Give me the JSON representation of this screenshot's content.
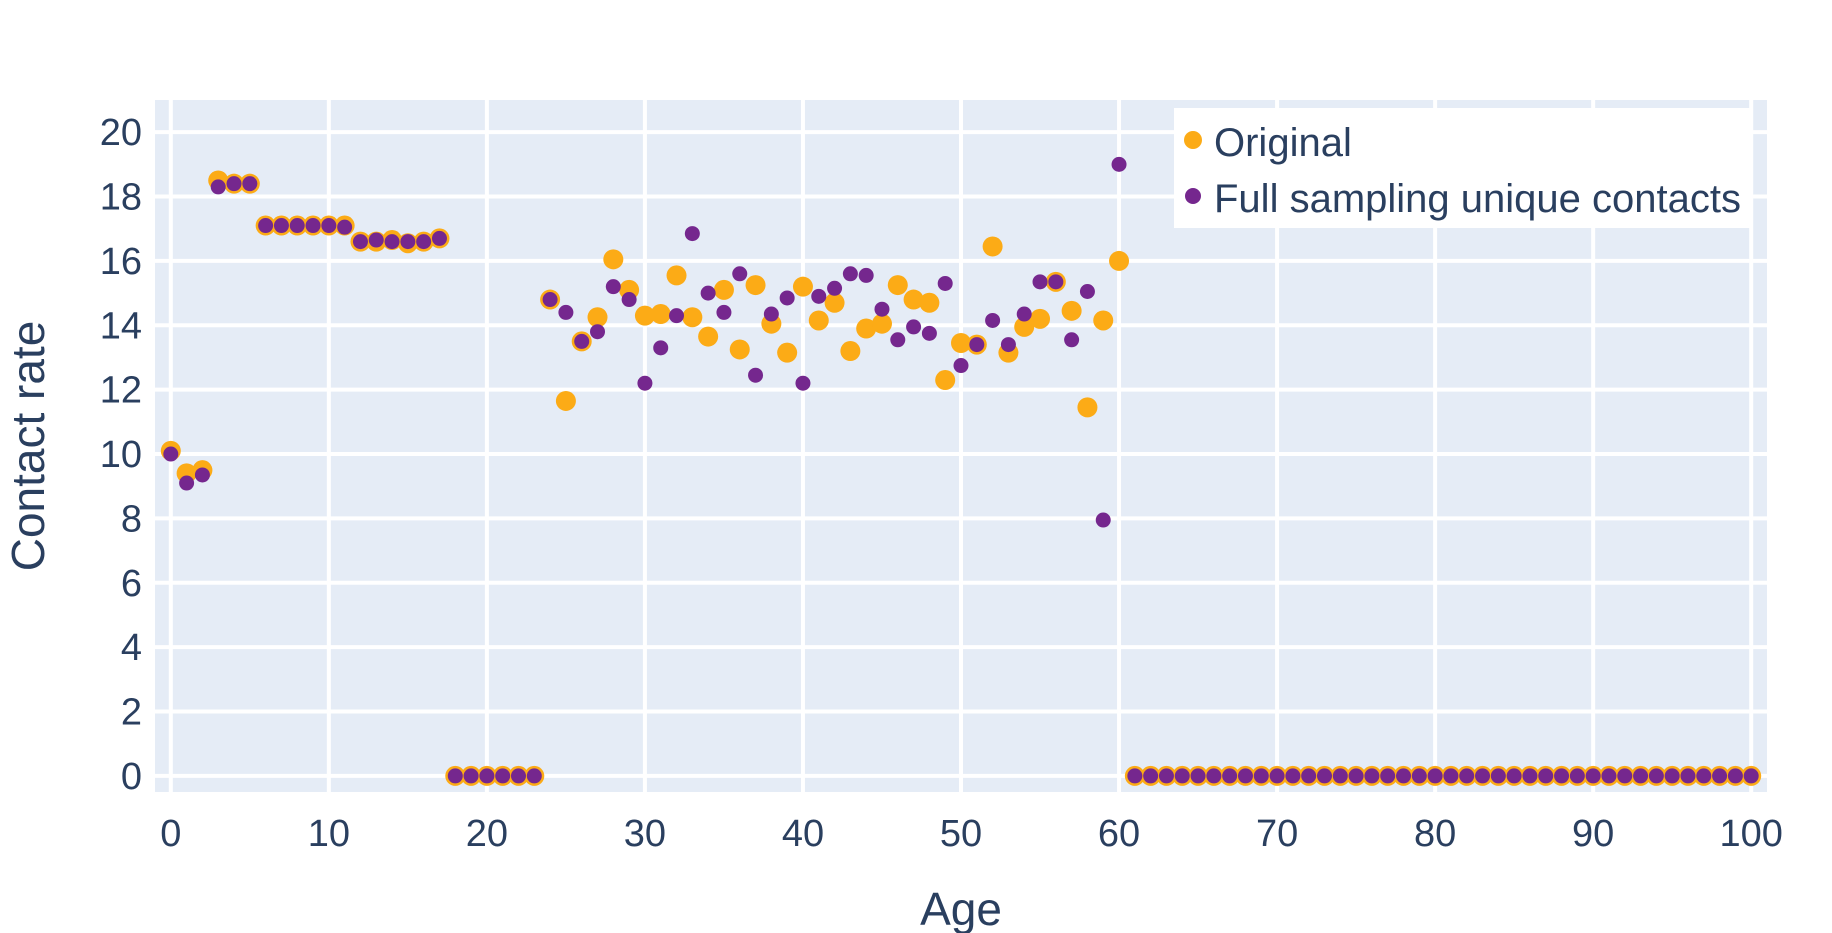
{
  "colors": {
    "background": "#ffffff",
    "plot_bg": "#e5ecf6",
    "grid": "#ffffff",
    "text": "#2a3f5f",
    "original": "#fcab16",
    "full_sampling": "#75278e"
  },
  "chart_data": {
    "type": "scatter",
    "title": "",
    "xlabel": "Age",
    "ylabel": "Contact rate",
    "xlim": [
      -1,
      101
    ],
    "ylim": [
      -0.5,
      21
    ],
    "xticks": [
      0,
      10,
      20,
      30,
      40,
      50,
      60,
      70,
      80,
      90,
      100
    ],
    "yticks": [
      0,
      2,
      4,
      6,
      8,
      10,
      12,
      14,
      16,
      18,
      20
    ],
    "grid": true,
    "legend_position": "top-right",
    "series": [
      {
        "name": "Original",
        "color": "#fcab16",
        "marker": "large-circle",
        "x": [
          0,
          1,
          2,
          3,
          4,
          5,
          6,
          7,
          8,
          9,
          10,
          11,
          12,
          13,
          14,
          15,
          16,
          17,
          18,
          19,
          20,
          21,
          22,
          23,
          24,
          25,
          26,
          27,
          28,
          29,
          30,
          31,
          32,
          33,
          34,
          35,
          36,
          37,
          38,
          39,
          40,
          41,
          42,
          43,
          44,
          45,
          46,
          47,
          48,
          49,
          50,
          51,
          52,
          53,
          54,
          55,
          56,
          57,
          58,
          59,
          60,
          61,
          62,
          63,
          64,
          65,
          66,
          67,
          68,
          69,
          70,
          71,
          72,
          73,
          74,
          75,
          76,
          77,
          78,
          79,
          80,
          81,
          82,
          83,
          84,
          85,
          86,
          87,
          88,
          89,
          90,
          91,
          92,
          93,
          94,
          95,
          96,
          97,
          98,
          99,
          100
        ],
        "y": [
          10.1,
          9.4,
          9.5,
          18.5,
          18.4,
          18.4,
          17.1,
          17.1,
          17.1,
          17.1,
          17.1,
          17.1,
          16.6,
          16.6,
          16.65,
          16.55,
          16.6,
          16.7,
          0,
          0,
          0,
          0,
          0,
          0,
          14.8,
          11.65,
          13.5,
          14.25,
          16.05,
          15.1,
          14.3,
          14.35,
          15.55,
          14.25,
          13.65,
          15.1,
          13.25,
          15.25,
          14.05,
          13.15,
          15.2,
          14.15,
          14.7,
          13.2,
          13.9,
          14.05,
          15.25,
          14.8,
          14.7,
          12.3,
          13.45,
          13.4,
          16.45,
          13.15,
          13.95,
          14.2,
          15.35,
          14.45,
          11.45,
          14.15,
          16.0,
          0,
          0,
          0,
          0,
          0,
          0,
          0,
          0,
          0,
          0,
          0,
          0,
          0,
          0,
          0,
          0,
          0,
          0,
          0,
          0,
          0,
          0,
          0,
          0,
          0,
          0,
          0,
          0,
          0,
          0,
          0,
          0,
          0,
          0,
          0,
          0,
          0,
          0,
          0,
          0
        ]
      },
      {
        "name": "Full sampling unique contacts",
        "color": "#75278e",
        "marker": "small-circle",
        "x": [
          0,
          1,
          2,
          3,
          4,
          5,
          6,
          7,
          8,
          9,
          10,
          11,
          12,
          13,
          14,
          15,
          16,
          17,
          18,
          19,
          20,
          21,
          22,
          23,
          24,
          25,
          26,
          27,
          28,
          29,
          30,
          31,
          32,
          33,
          34,
          35,
          36,
          37,
          38,
          39,
          40,
          41,
          42,
          43,
          44,
          45,
          46,
          47,
          48,
          49,
          50,
          51,
          52,
          53,
          54,
          55,
          56,
          57,
          58,
          59,
          60,
          61,
          62,
          63,
          64,
          65,
          66,
          67,
          68,
          69,
          70,
          71,
          72,
          73,
          74,
          75,
          76,
          77,
          78,
          79,
          80,
          81,
          82,
          83,
          84,
          85,
          86,
          87,
          88,
          89,
          90,
          91,
          92,
          93,
          94,
          95,
          96,
          97,
          98,
          99,
          100
        ],
        "y": [
          10.0,
          9.1,
          9.35,
          18.3,
          18.4,
          18.4,
          17.1,
          17.1,
          17.1,
          17.1,
          17.1,
          17.05,
          16.6,
          16.65,
          16.6,
          16.6,
          16.6,
          16.7,
          0,
          0,
          0,
          0,
          0,
          0,
          14.8,
          14.4,
          13.5,
          13.8,
          15.2,
          14.8,
          12.2,
          13.3,
          14.3,
          16.85,
          15.0,
          14.4,
          15.6,
          12.45,
          14.35,
          14.85,
          12.2,
          14.9,
          15.15,
          15.6,
          15.55,
          14.5,
          13.55,
          13.95,
          13.75,
          15.3,
          12.75,
          13.4,
          14.15,
          13.4,
          14.35,
          15.35,
          15.35,
          13.55,
          15.05,
          7.95,
          19.0,
          0,
          0,
          0,
          0,
          0,
          0,
          0,
          0,
          0,
          0,
          0,
          0,
          0,
          0,
          0,
          0,
          0,
          0,
          0,
          0,
          0,
          0,
          0,
          0,
          0,
          0,
          0,
          0,
          0,
          0,
          0,
          0,
          0,
          0,
          0,
          0,
          0,
          0,
          0,
          0
        ]
      }
    ]
  }
}
